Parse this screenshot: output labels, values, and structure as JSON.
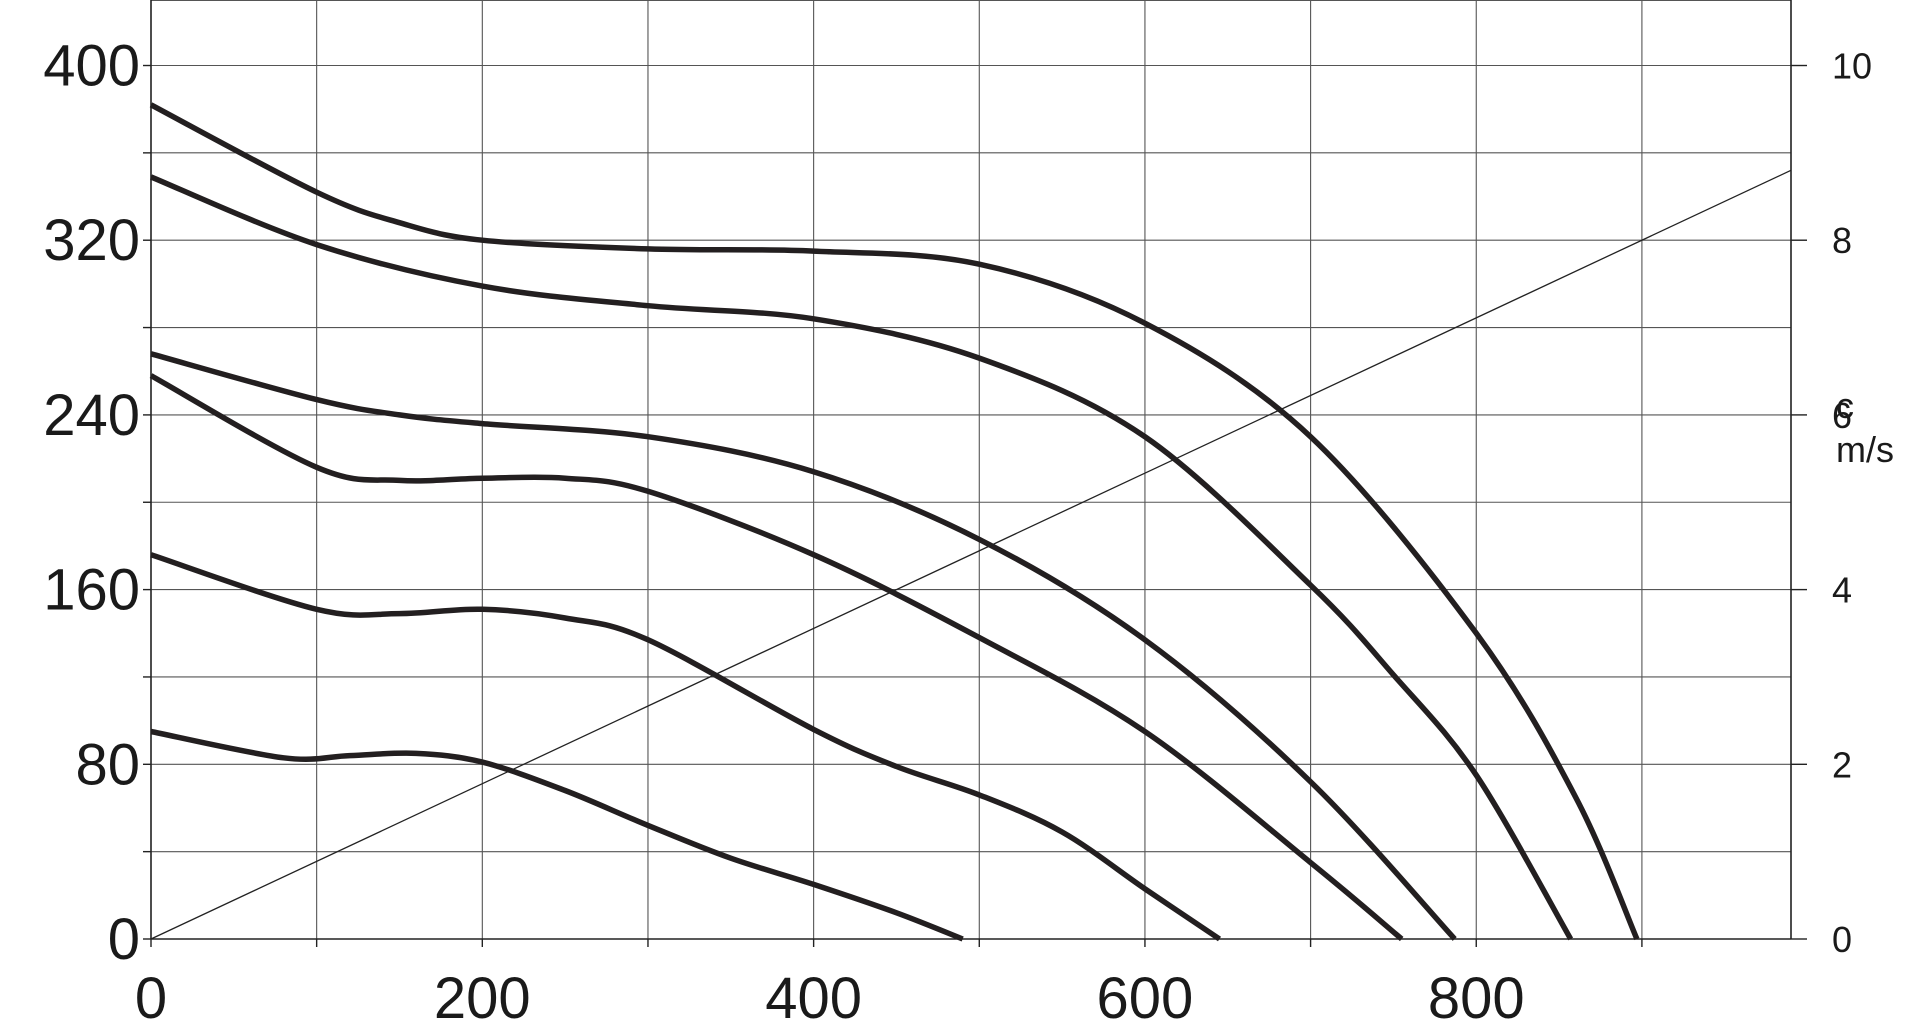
{
  "chart_data": {
    "type": "line",
    "title": "",
    "xlabel": "",
    "ylabel": "",
    "xlim": [
      0,
      990
    ],
    "ylim": [
      0,
      430
    ],
    "x_ticks": [
      0,
      200,
      400,
      600,
      800
    ],
    "x_tick_labels": [
      "0",
      "200",
      "400",
      "600",
      "800"
    ],
    "y_ticks": [
      0,
      80,
      160,
      240,
      320,
      400
    ],
    "y_tick_labels": [
      "0",
      "80",
      "160",
      "240",
      "320",
      "400"
    ],
    "y2_label_line1": "c",
    "y2_label_line2": "m/s",
    "y2_lim": [
      0,
      10
    ],
    "y2_ticks": [
      0,
      2,
      4,
      6,
      8,
      10
    ],
    "y2_tick_labels": [
      "0",
      "2",
      "4",
      "6",
      "8",
      "10"
    ],
    "grid": true,
    "legend": "none",
    "series": [
      {
        "axis": "left",
        "x": [
          0,
          100,
          150,
          200,
          300,
          400,
          500,
          600,
          700,
          800,
          860,
          897
        ],
        "y": [
          382,
          342,
          328,
          320,
          316,
          315,
          309,
          282,
          230,
          140,
          65,
          0
        ]
      },
      {
        "axis": "left",
        "x": [
          0,
          100,
          200,
          300,
          400,
          500,
          600,
          700,
          750,
          800,
          857
        ],
        "y": [
          349,
          318,
          299,
          290,
          284,
          266,
          230,
          162,
          121,
          75,
          0
        ]
      },
      {
        "axis": "left",
        "x": [
          0,
          100,
          150,
          200,
          300,
          400,
          500,
          600,
          700,
          787
        ],
        "y": [
          268,
          247,
          240,
          236,
          230,
          214,
          183,
          137,
          72,
          0
        ]
      },
      {
        "axis": "left",
        "x": [
          0,
          100,
          150,
          200,
          250,
          300,
          400,
          500,
          600,
          700,
          755
        ],
        "y": [
          258,
          216,
          210,
          211,
          211,
          205,
          176,
          138,
          95,
          35,
          0
        ]
      },
      {
        "axis": "left",
        "x": [
          0,
          100,
          150,
          200,
          250,
          300,
          400,
          450,
          500,
          550,
          600,
          645
        ],
        "y": [
          176,
          151,
          149,
          151,
          147,
          137,
          96,
          79,
          66,
          49,
          23,
          0
        ]
      },
      {
        "axis": "left",
        "x": [
          0,
          80,
          120,
          160,
          200,
          250,
          300,
          350,
          400,
          450,
          490
        ],
        "y": [
          95,
          83,
          84,
          85,
          81,
          68,
          52,
          37,
          25,
          12,
          0
        ]
      },
      {
        "axis": "right",
        "x": [
          0,
          990
        ],
        "y": [
          0,
          8.8
        ]
      }
    ]
  }
}
